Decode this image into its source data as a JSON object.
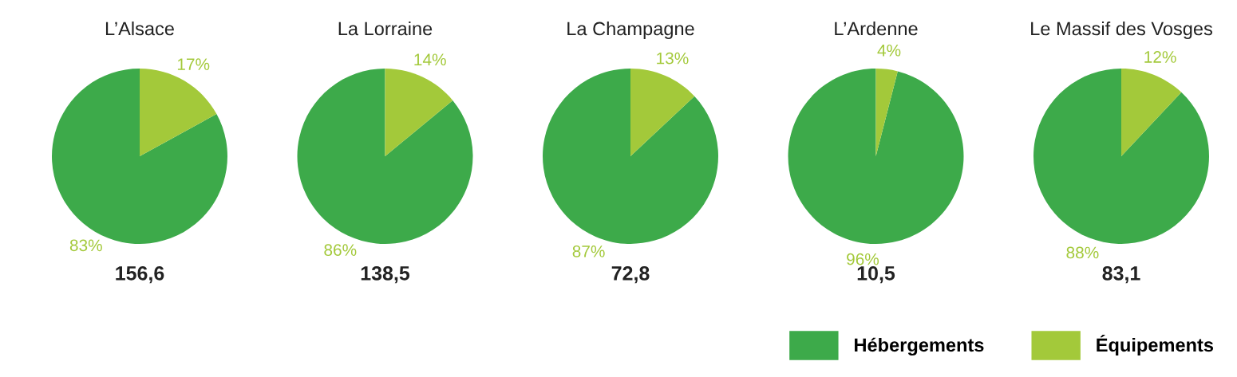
{
  "chart_data": [
    {
      "type": "pie",
      "title": "L’Alsace",
      "categories": [
        "Hébergements",
        "Équipements"
      ],
      "values": [
        83,
        17
      ],
      "value_labels": [
        "83%",
        "17%"
      ],
      "colors": [
        "#3daa4a",
        "#a3c93a"
      ],
      "annotations": [
        "156,6"
      ],
      "legend": "bottom right"
    },
    {
      "type": "pie",
      "title": "La Lorraine",
      "categories": [
        null,
        null
      ],
      "values": [
        86,
        14
      ],
      "value_labels": [
        "86%",
        "14%"
      ],
      "colors": [
        "#3daa4a",
        "#a3c93a"
      ],
      "annotations": [
        "138,5"
      ]
    },
    {
      "type": "pie",
      "title": "La Champagne",
      "categories": [
        null,
        null
      ],
      "values": [
        87,
        13
      ],
      "value_labels": [
        "87%",
        "13%"
      ],
      "colors": [
        "#3daa4a",
        "#a3c93a"
      ],
      "annotations": [
        "72,8"
      ]
    },
    {
      "type": "pie",
      "title": "L’Ardenne",
      "categories": [
        null,
        null
      ],
      "values": [
        96,
        4
      ],
      "value_labels": [
        "96%",
        "4%"
      ],
      "colors": [
        "#3daa4a",
        "#a3c93a"
      ],
      "annotations": [
        "10,5"
      ]
    },
    {
      "type": "pie",
      "title": "Le Massif des Vosges",
      "categories": [
        null,
        null
      ],
      "values": [
        88,
        12
      ],
      "value_labels": [
        "88%",
        "12%"
      ],
      "colors": [
        "#3daa4a",
        "#a3c93a"
      ],
      "annotations": [
        "83,1"
      ]
    }
  ]
}
